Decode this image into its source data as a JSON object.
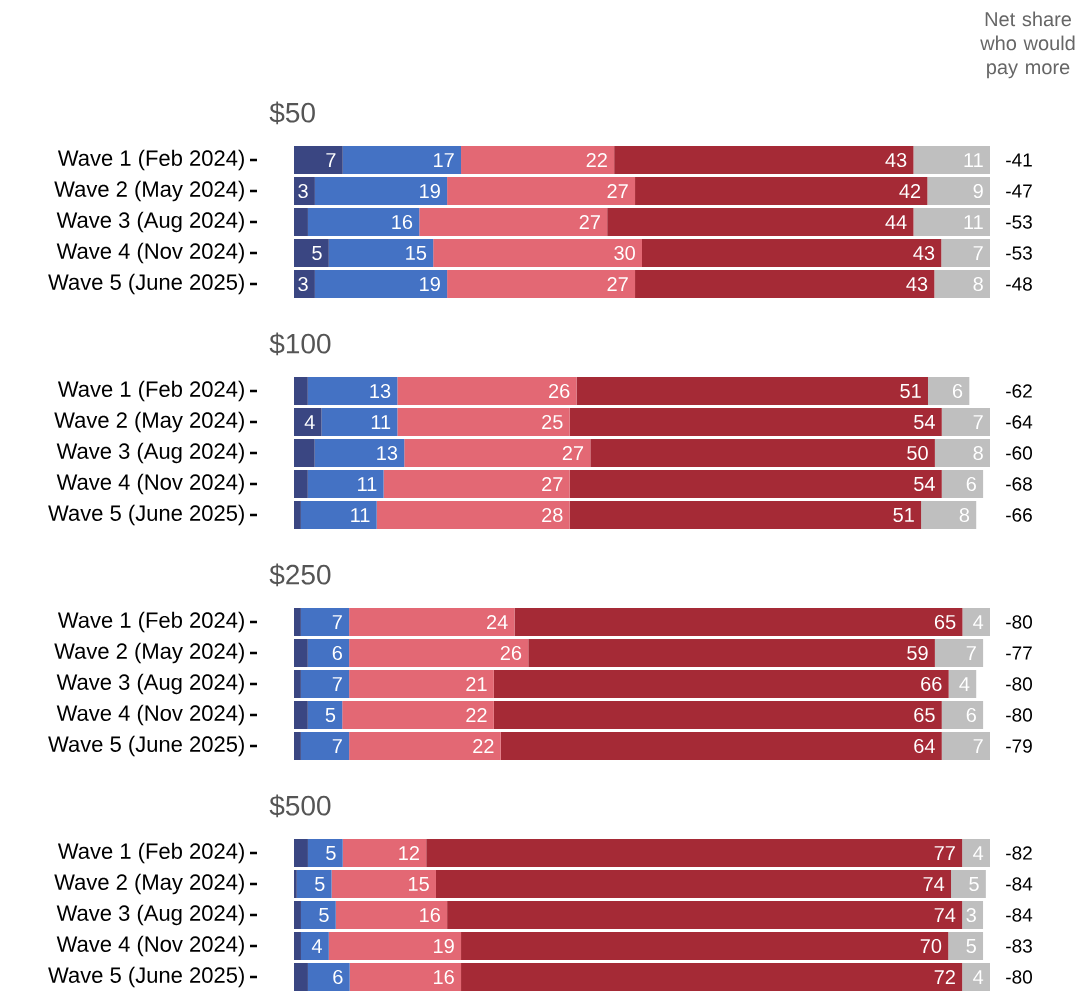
{
  "chart_data": [
    {
      "type": "bar",
      "orientation": "horizontal",
      "stacked": true,
      "title": "$50",
      "categories": [
        "Wave 1 (Feb 2024)",
        "Wave 2 (May 2024)",
        "Wave 3 (Aug 2024)",
        "Wave 4 (Nov 2024)",
        "Wave 5 (June 2025)"
      ],
      "series": [
        {
          "color": "#3a4682",
          "values": [
            7,
            3,
            2,
            5,
            3
          ],
          "value_labels": [
            "7",
            "3",
            null,
            "5",
            "3"
          ]
        },
        {
          "color": "#4472c4",
          "values": [
            17,
            19,
            16,
            15,
            19
          ],
          "value_labels": [
            "17",
            "19",
            "16",
            "15",
            "19"
          ]
        },
        {
          "color": "#e36874",
          "values": [
            22,
            27,
            27,
            30,
            27
          ],
          "value_labels": [
            "22",
            "27",
            "27",
            "30",
            "27"
          ]
        },
        {
          "color": "#a52a36",
          "values": [
            43,
            42,
            44,
            43,
            43
          ],
          "value_labels": [
            "43",
            "42",
            "44",
            "43",
            "43"
          ]
        },
        {
          "color": "#bfbfbf",
          "values": [
            11,
            9,
            11,
            7,
            8
          ],
          "value_labels": [
            "11",
            "9",
            "11",
            "7",
            "8"
          ]
        }
      ],
      "annotations": [
        "Net share who would pay more",
        "-41",
        "-47",
        "-53",
        "-53",
        "-48"
      ]
    },
    {
      "type": "bar",
      "orientation": "horizontal",
      "stacked": true,
      "title": "$100",
      "categories": [
        "Wave 1 (Feb 2024)",
        "Wave 2 (May 2024)",
        "Wave 3 (Aug 2024)",
        "Wave 4 (Nov 2024)",
        "Wave 5 (June 2025)"
      ],
      "series": [
        {
          "color": "#3a4682",
          "values": [
            2,
            4,
            3,
            2,
            1
          ],
          "value_labels": [
            null,
            "4",
            null,
            null,
            null
          ]
        },
        {
          "color": "#4472c4",
          "values": [
            13,
            11,
            13,
            11,
            11
          ],
          "value_labels": [
            "13",
            "11",
            "13",
            "11",
            "11"
          ]
        },
        {
          "color": "#e36874",
          "values": [
            26,
            25,
            27,
            27,
            28
          ],
          "value_labels": [
            "26",
            "25",
            "27",
            "27",
            "28"
          ]
        },
        {
          "color": "#a52a36",
          "values": [
            51,
            54,
            50,
            54,
            51
          ],
          "value_labels": [
            "51",
            "54",
            "50",
            "54",
            "51"
          ]
        },
        {
          "color": "#bfbfbf",
          "values": [
            6,
            7,
            8,
            6,
            8
          ],
          "value_labels": [
            "6",
            "7",
            "8",
            "6",
            "8"
          ]
        }
      ],
      "annotations": [
        "-62",
        "-64",
        "-60",
        "-68",
        "-66"
      ]
    },
    {
      "type": "bar",
      "orientation": "horizontal",
      "stacked": true,
      "title": "$250",
      "categories": [
        "Wave 1 (Feb 2024)",
        "Wave 2 (May 2024)",
        "Wave 3 (Aug 2024)",
        "Wave 4 (Nov 2024)",
        "Wave 5 (June 2025)"
      ],
      "series": [
        {
          "color": "#3a4682",
          "values": [
            1,
            2,
            1,
            2,
            1
          ]
        },
        {
          "color": "#4472c4",
          "values": [
            7,
            6,
            7,
            5,
            7
          ],
          "value_labels": [
            "7",
            "6",
            "7",
            "5",
            "7"
          ]
        },
        {
          "color": "#e36874",
          "values": [
            24,
            26,
            21,
            22,
            22
          ],
          "value_labels": [
            "24",
            "26",
            "21",
            "22",
            "22"
          ]
        },
        {
          "color": "#a52a36",
          "values": [
            65,
            59,
            66,
            65,
            64
          ],
          "value_labels": [
            "65",
            "59",
            "66",
            "65",
            "64"
          ]
        },
        {
          "color": "#bfbfbf",
          "values": [
            4,
            7,
            4,
            6,
            7
          ],
          "value_labels": [
            "4",
            "7",
            "4",
            "6",
            "7"
          ]
        }
      ],
      "annotations": [
        "-80",
        "-77",
        "-80",
        "-80",
        "-79"
      ]
    },
    {
      "type": "bar",
      "orientation": "horizontal",
      "stacked": true,
      "title": "$500",
      "categories": [
        "Wave 1 (Feb 2024)",
        "Wave 2 (May 2024)",
        "Wave 3 (Aug 2024)",
        "Wave 4 (Nov 2024)",
        "Wave 5 (June 2025)"
      ],
      "series": [
        {
          "color": "#3a4682",
          "values": [
            2,
            0.4,
            1,
            1,
            2
          ]
        },
        {
          "color": "#4472c4",
          "values": [
            5,
            5,
            5,
            4,
            6
          ],
          "value_labels": [
            "5",
            "5",
            "5",
            "4",
            "6"
          ]
        },
        {
          "color": "#e36874",
          "values": [
            12,
            15,
            16,
            19,
            16
          ],
          "value_labels": [
            "12",
            "15",
            "16",
            "19",
            "16"
          ]
        },
        {
          "color": "#a52a36",
          "values": [
            77,
            74,
            74,
            70,
            72
          ],
          "value_labels": [
            "77",
            "74",
            "74",
            "70",
            "72"
          ]
        },
        {
          "color": "#bfbfbf",
          "values": [
            4,
            5,
            3,
            5,
            4
          ],
          "value_labels": [
            "4",
            "5",
            "3",
            "5",
            "4"
          ]
        }
      ],
      "annotations": [
        "-82",
        "-84",
        "-84",
        "-83",
        "-80"
      ]
    }
  ]
}
